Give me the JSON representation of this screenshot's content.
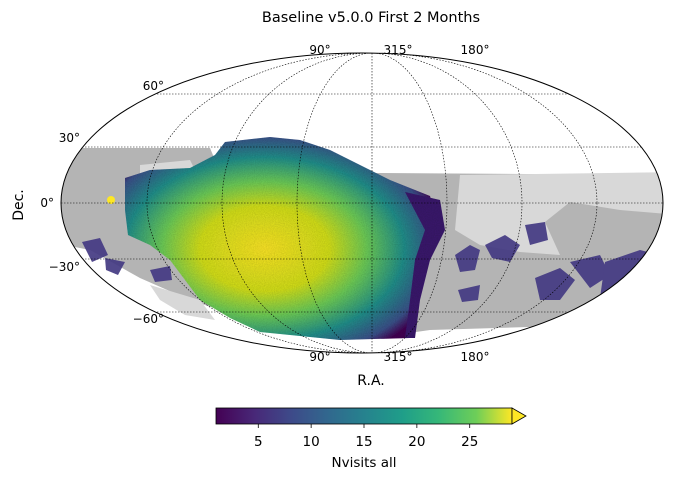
{
  "chart_data": {
    "type": "heatmap",
    "projection": "mollweide",
    "title": "Baseline v5.0.0 First 2 Months",
    "xlabel": "R.A.",
    "ylabel": "Dec.",
    "ra_tick_labels_top": [
      "90°",
      "315°",
      "180°"
    ],
    "ra_tick_labels_bottom": [
      "90°",
      "315°",
      "180°"
    ],
    "dec_tick_labels": [
      "60°",
      "30°",
      "0°",
      "−30°",
      "−60°"
    ],
    "grid": true,
    "colorbar": {
      "label": "Nvisits all",
      "ticks": [
        "5",
        "10",
        "15",
        "20",
        "25"
      ],
      "tick_values": [
        5,
        10,
        15,
        20,
        25
      ],
      "range": [
        1,
        29
      ],
      "extend": "max",
      "colormap": "viridis"
    },
    "colors": {
      "footprint_gray": "#b4b4b4",
      "footprint_light": "#d8d8d8",
      "viridis_low": "#440154",
      "viridis_mid": "#21918c",
      "viridis_high": "#fde725"
    }
  }
}
